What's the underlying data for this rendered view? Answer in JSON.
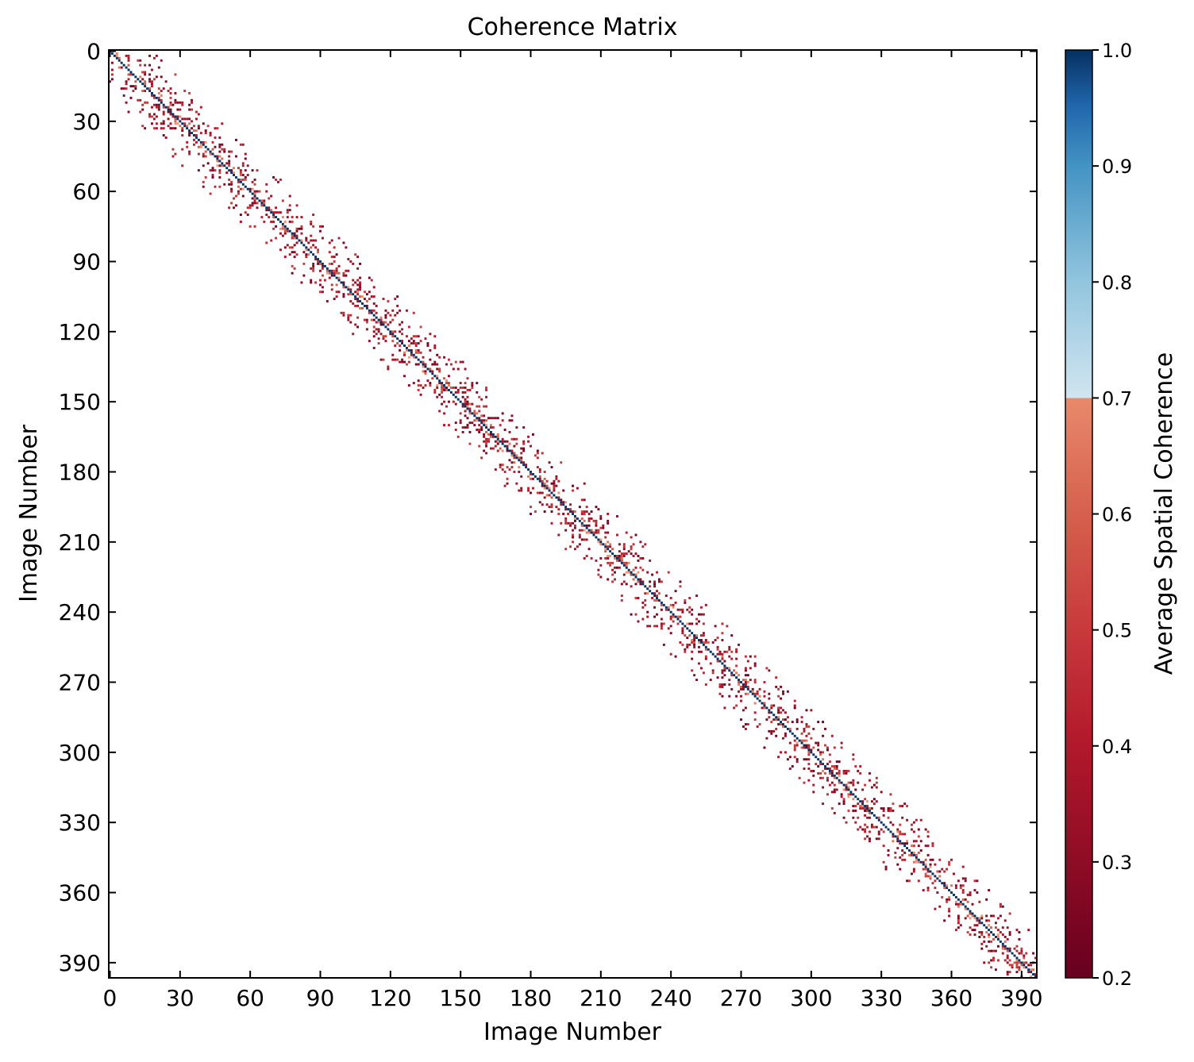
{
  "chart_data": {
    "type": "heatmap",
    "title": "Coherence Matrix",
    "xlabel": "Image Number",
    "ylabel": "Image Number",
    "n": 397,
    "xlim": [
      0,
      397
    ],
    "ylim": [
      0,
      397
    ],
    "x_ticks": [
      0,
      30,
      60,
      90,
      120,
      150,
      180,
      210,
      240,
      270,
      300,
      330,
      360,
      390
    ],
    "y_ticks": [
      0,
      30,
      60,
      90,
      120,
      150,
      180,
      210,
      240,
      270,
      300,
      330,
      360,
      390
    ],
    "y_axis_inverted": true,
    "grid": false,
    "diagonal_value": 1.0,
    "off_diagonal_band_halfwidth": 18,
    "colorbar": {
      "label": "Average Spatial Coherence",
      "vmin": 0.2,
      "vmax": 1.0,
      "ticks": [
        1.0,
        0.9,
        0.8,
        0.7,
        0.6,
        0.5,
        0.4,
        0.3,
        0.2
      ],
      "tick_labels": [
        "1.0",
        "0.9",
        "0.8",
        "0.7",
        "0.6",
        "0.5",
        "0.4",
        "0.3",
        "0.2"
      ],
      "placement": "right",
      "colormap": "RdBu",
      "colors": {
        "low": "#67001f",
        "mid_low": "#b2182b",
        "mid": "#d6604d",
        "mid_high": "#f4a582",
        "high_start": "#d1e5f0",
        "high_mid": "#4393c3",
        "high": "#053061"
      }
    }
  }
}
